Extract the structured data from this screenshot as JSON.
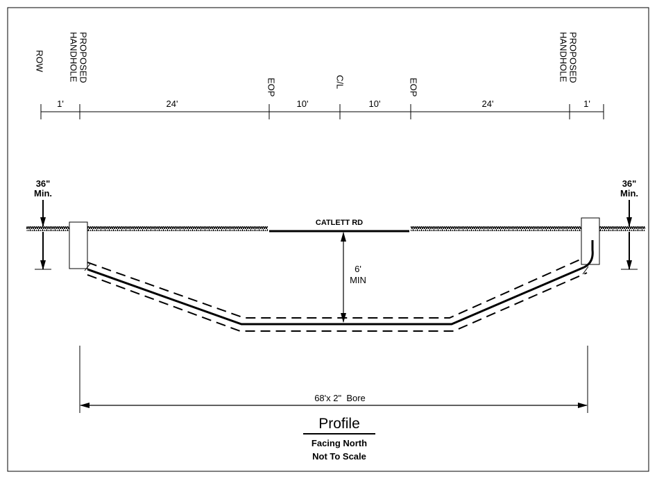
{
  "header_labels": {
    "row": "ROW",
    "handhole_left_1": "PROPOSED",
    "handhole_left_2": "HANDHOLE",
    "eop_left": "EOP",
    "centerline": "C/L",
    "eop_right": "EOP",
    "handhole_right_1": "PROPOSED",
    "handhole_right_2": "HANDHOLE"
  },
  "dimensions": {
    "seg1": "1'",
    "seg2": "24'",
    "seg3": "10'",
    "seg4": "10'",
    "seg5": "24'",
    "seg6": "1'"
  },
  "depth_left": {
    "value": "36\"",
    "qualifier": "Min."
  },
  "depth_right": {
    "value": "36\"",
    "qualifier": "Min."
  },
  "road_name": "CATLETT RD",
  "bore_min_1": "6'",
  "bore_min_2": "MIN",
  "bore_length": "68'x 2\"  Bore",
  "title": "Profile",
  "subtitle_1": "Facing North",
  "subtitle_2": "Not To Scale"
}
